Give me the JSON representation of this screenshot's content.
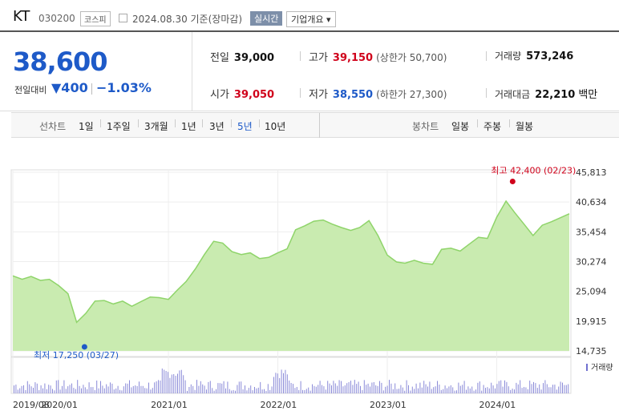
{
  "header": {
    "name": "KT",
    "code": "030200",
    "market": "코스피",
    "date_text": "2024.08.30 기준(장마감)",
    "realtime_label": "실시간",
    "overview_label": "기업개요 ▾"
  },
  "quote": {
    "price": "38,600",
    "prev_label": "전일대비",
    "change": "▼400",
    "change_pct": "−1.03%",
    "prev_close_label": "전일",
    "prev_close": "39,000",
    "open_label": "시가",
    "open": "39,050",
    "high_label": "고가",
    "high": "39,150",
    "upper_limit": "(상한가 50,700)",
    "low_label": "저가",
    "low": "38,550",
    "lower_limit": "(하한가 27,300)",
    "volume_label": "거래량",
    "volume": "573,246",
    "value_label": "거래대금",
    "value": "22,210",
    "value_unit": "백만"
  },
  "tabs": {
    "line_label": "선차트",
    "line_tabs": [
      "1일",
      "1주일",
      "3개월",
      "1년",
      "3년",
      "5년",
      "10년"
    ],
    "active": "5년",
    "candle_label": "봉차트",
    "candle_tabs": [
      "일봉",
      "주봉",
      "월봉"
    ]
  },
  "colors": {
    "up": "#d0021b",
    "down": "#1e5ac8",
    "area": "#c9ebb0",
    "line": "#8fd46a"
  },
  "chart_data": {
    "type": "area",
    "ylim": [
      14735,
      45813
    ],
    "yticks": [
      "45,813",
      "40,634",
      "35,454",
      "30,274",
      "25,094",
      "19,915",
      "14,735"
    ],
    "xticks": [
      "2019/08",
      "2020/01",
      "2021/01",
      "2022/01",
      "2023/01",
      "2024/01"
    ],
    "xtick_dates": [
      "2019-08",
      "2020-01",
      "2021-01",
      "2022-01",
      "2023-01",
      "2024-01"
    ],
    "x_range": [
      "2019-08",
      "2024-08-30"
    ],
    "max_label": "최고 42,400 (02/23)",
    "max_value": 42400,
    "max_date": "2024-02-23",
    "min_label": "최저 17,250 (03/27)",
    "min_value": 17250,
    "min_date": "2020-03-27",
    "volume_label": "거래량",
    "series": [
      {
        "name": "KT",
        "points": [
          [
            "2019-08",
            27800
          ],
          [
            "2019-09",
            27200
          ],
          [
            "2019-10",
            27700
          ],
          [
            "2019-11",
            27000
          ],
          [
            "2019-12",
            27200
          ],
          [
            "2020-01",
            26100
          ],
          [
            "2020-02",
            24700
          ],
          [
            "2020-03",
            19700
          ],
          [
            "2020-04",
            21300
          ],
          [
            "2020-05",
            23400
          ],
          [
            "2020-06",
            23500
          ],
          [
            "2020-07",
            22900
          ],
          [
            "2020-08",
            23400
          ],
          [
            "2020-09",
            22500
          ],
          [
            "2020-10",
            23300
          ],
          [
            "2020-11",
            24100
          ],
          [
            "2020-12",
            24000
          ],
          [
            "2021-01",
            23700
          ],
          [
            "2021-02",
            25400
          ],
          [
            "2021-03",
            26800
          ],
          [
            "2021-04",
            29000
          ],
          [
            "2021-05",
            31500
          ],
          [
            "2021-06",
            33800
          ],
          [
            "2021-07",
            33500
          ],
          [
            "2021-08",
            32000
          ],
          [
            "2021-09",
            31500
          ],
          [
            "2021-10",
            31800
          ],
          [
            "2021-11",
            30800
          ],
          [
            "2021-12",
            31000
          ],
          [
            "2022-01",
            31800
          ],
          [
            "2022-02",
            32500
          ],
          [
            "2022-03",
            35800
          ],
          [
            "2022-04",
            36500
          ],
          [
            "2022-05",
            37300
          ],
          [
            "2022-06",
            37500
          ],
          [
            "2022-07",
            36800
          ],
          [
            "2022-08",
            36200
          ],
          [
            "2022-09",
            35700
          ],
          [
            "2022-10",
            36200
          ],
          [
            "2022-11",
            37400
          ],
          [
            "2022-12",
            34800
          ],
          [
            "2023-01",
            31400
          ],
          [
            "2023-02",
            30200
          ],
          [
            "2023-03",
            30000
          ],
          [
            "2023-04",
            30500
          ],
          [
            "2023-05",
            30000
          ],
          [
            "2023-06",
            29800
          ],
          [
            "2023-07",
            32400
          ],
          [
            "2023-08",
            32600
          ],
          [
            "2023-09",
            32100
          ],
          [
            "2023-10",
            33300
          ],
          [
            "2023-11",
            34500
          ],
          [
            "2023-12",
            34300
          ],
          [
            "2024-01",
            38000
          ],
          [
            "2024-02",
            40800
          ],
          [
            "2024-03",
            38800
          ],
          [
            "2024-04",
            36800
          ],
          [
            "2024-05",
            34800
          ],
          [
            "2024-06",
            36600
          ],
          [
            "2024-07",
            37200
          ],
          [
            "2024-08-30",
            38600
          ]
        ]
      }
    ]
  }
}
